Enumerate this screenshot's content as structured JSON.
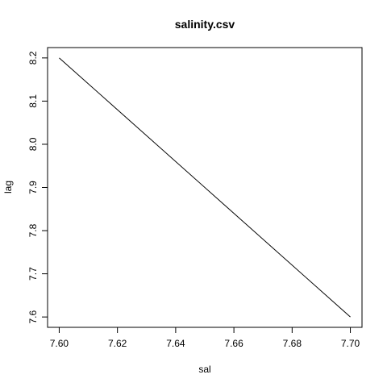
{
  "chart_data": {
    "type": "line",
    "title": "salinity.csv",
    "xlabel": "sal",
    "ylabel": "lag",
    "x": [
      7.6,
      7.7
    ],
    "series": [
      {
        "values": [
          8.2,
          7.6
        ]
      }
    ],
    "xlim": [
      7.596,
      7.704
    ],
    "ylim": [
      7.576,
      8.224
    ],
    "xticks": [
      7.6,
      7.62,
      7.64,
      7.66,
      7.68,
      7.7
    ],
    "xtick_labels": [
      "7.60",
      "7.62",
      "7.64",
      "7.66",
      "7.68",
      "7.70"
    ],
    "yticks": [
      7.6,
      7.7,
      7.8,
      7.9,
      8.0,
      8.1,
      8.2
    ],
    "ytick_labels": [
      "7.6",
      "7.7",
      "7.8",
      "7.9",
      "8.0",
      "8.1",
      "8.2"
    ],
    "grid": false,
    "line_color": "#000000"
  }
}
